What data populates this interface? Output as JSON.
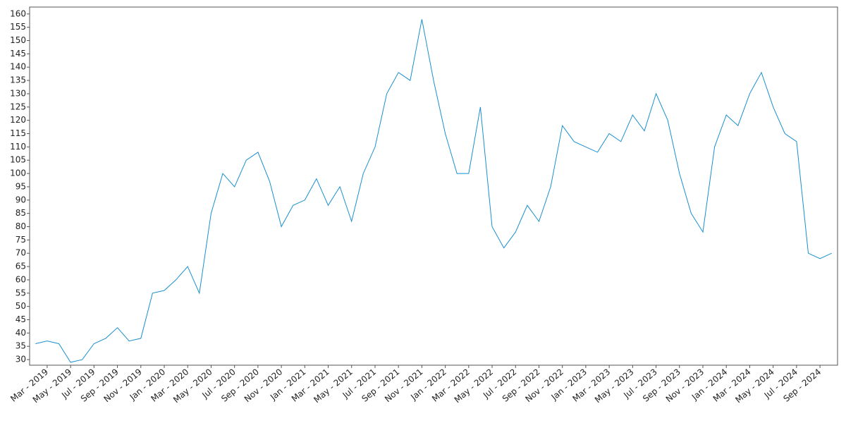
{
  "chart_data": {
    "type": "line",
    "categories": [
      null,
      "Mar - 2019",
      null,
      "May - 2019",
      null,
      "Jul - 2019",
      null,
      "Sep - 2019",
      null,
      "Nov - 2019",
      null,
      "Jan - 2020",
      null,
      "Mar - 2020",
      null,
      "May - 2020",
      null,
      "Jul - 2020",
      null,
      "Sep - 2020",
      null,
      "Nov - 2020",
      null,
      "Jan - 2021",
      null,
      "Mar - 2021",
      null,
      "May - 2021",
      null,
      "Jul - 2021",
      null,
      "Sep - 2021",
      null,
      "Nov - 2021",
      null,
      "Jan - 2022",
      null,
      "Mar - 2022",
      null,
      "May - 2022",
      null,
      "Jul - 2022",
      null,
      "Sep - 2022",
      null,
      "Nov - 2022",
      null,
      "Jan - 2023",
      null,
      "Mar - 2023",
      null,
      "May - 2023",
      null,
      "Jul - 2023",
      null,
      "Sep - 2023",
      null,
      "Nov - 2023",
      null,
      "Jan - 2024",
      null,
      "Mar - 2024",
      null,
      "May - 2024",
      null,
      "Jul - 2024",
      null,
      "Sep - 2024",
      null
    ],
    "values": [
      36,
      37,
      36,
      29,
      30,
      36,
      38,
      42,
      37,
      38,
      55,
      56,
      60,
      65,
      55,
      85,
      100,
      95,
      105,
      108,
      97,
      80,
      88,
      90,
      98,
      88,
      95,
      82,
      100,
      110,
      130,
      138,
      135,
      158,
      135,
      115,
      100,
      100,
      125,
      80,
      72,
      78,
      88,
      82,
      95,
      118,
      112,
      110,
      108,
      115,
      112,
      122,
      116,
      130,
      120,
      100,
      85,
      78,
      110,
      122,
      118,
      130,
      138,
      125,
      115,
      112,
      70,
      68,
      70
    ],
    "color": "#1a8fce",
    "ylim": [
      27.9,
      162.6
    ],
    "yticks": [
      30,
      35,
      40,
      45,
      50,
      55,
      60,
      65,
      70,
      75,
      80,
      85,
      90,
      95,
      100,
      105,
      110,
      115,
      120,
      125,
      130,
      135,
      140,
      145,
      150,
      155,
      160
    ]
  }
}
